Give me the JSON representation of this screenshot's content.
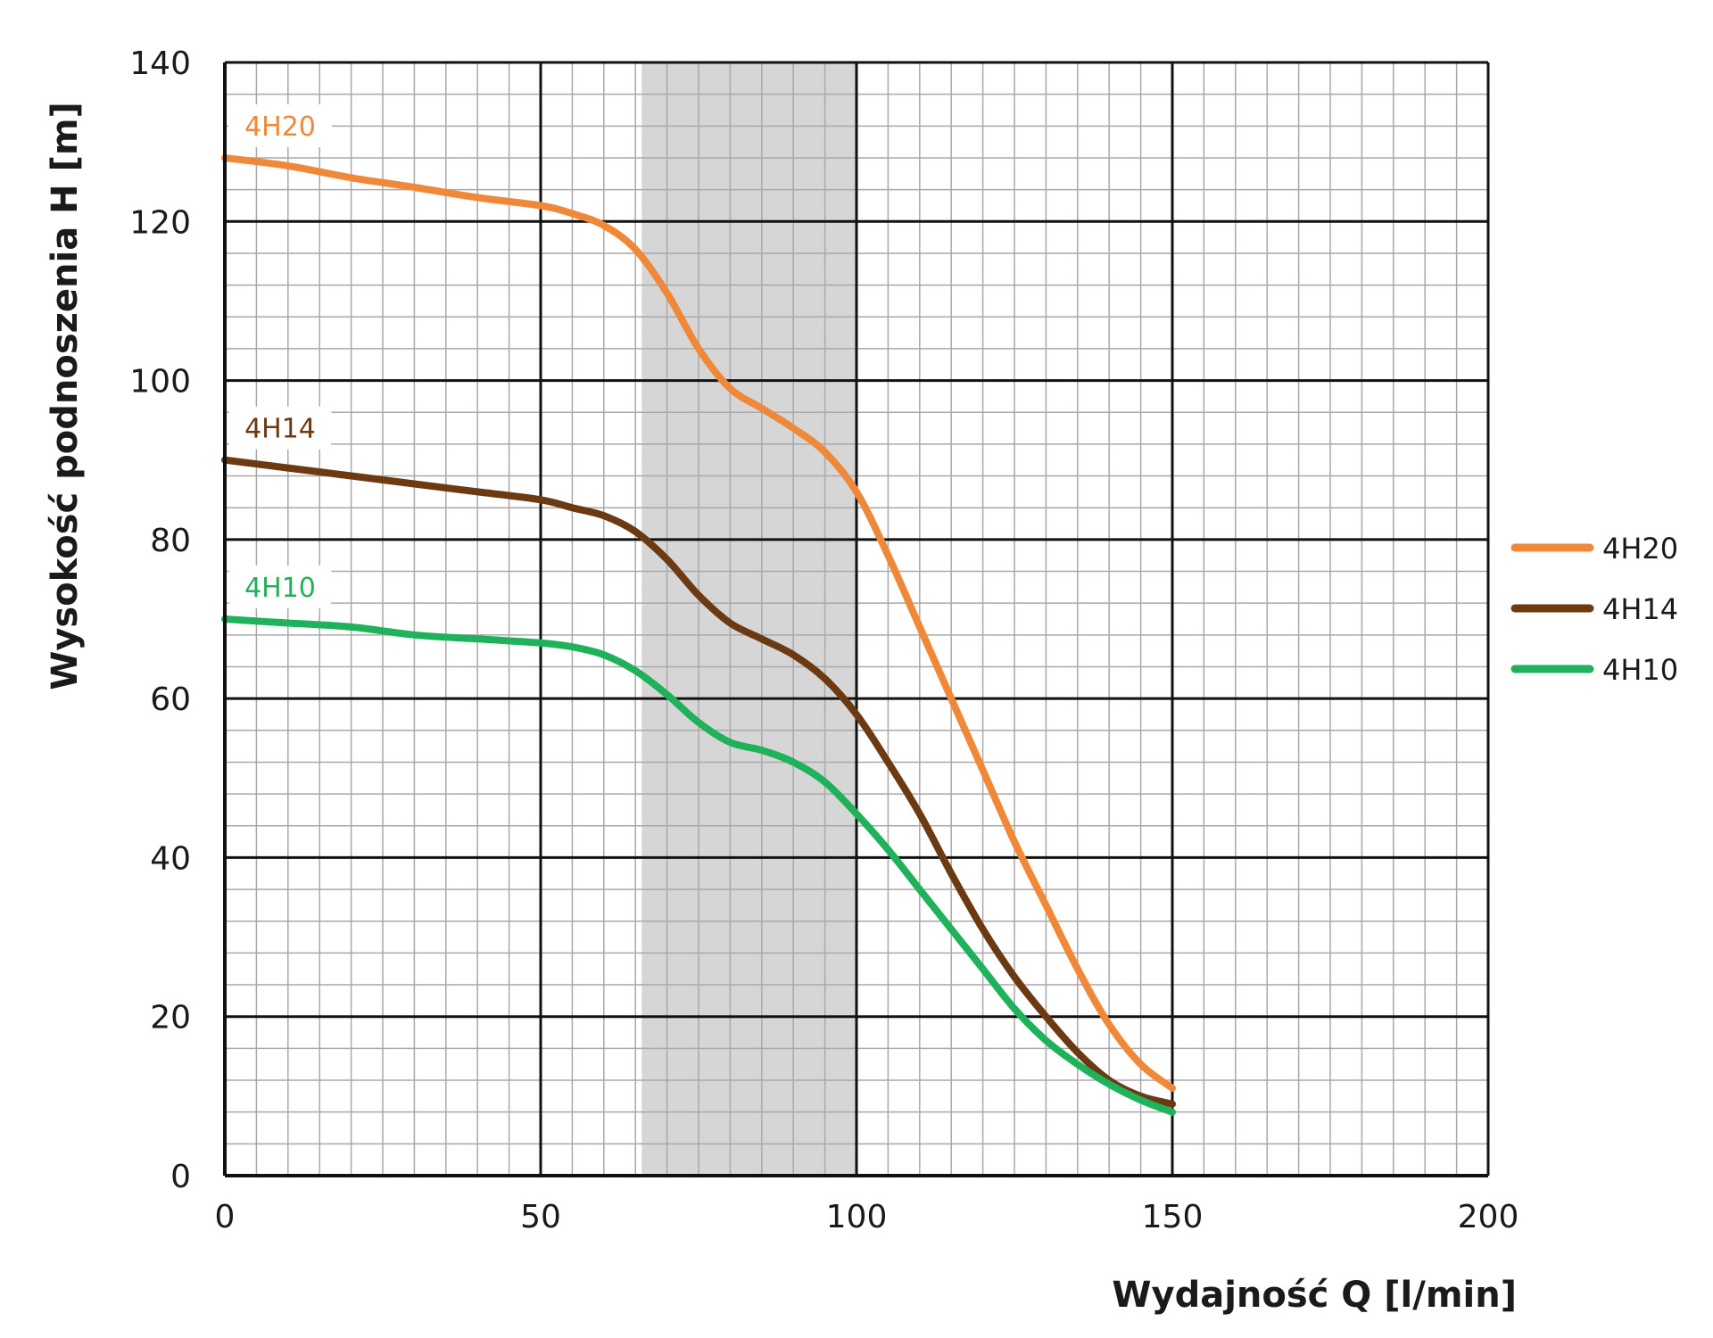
{
  "chart_data": {
    "type": "line",
    "xlabel": "Wydajność Q [l/min]",
    "ylabel": "Wysokość podnoszenia H [m]",
    "xlim": [
      0,
      200
    ],
    "ylim": [
      0,
      140
    ],
    "x_ticks": [
      "0",
      "50",
      "100",
      "150",
      "200"
    ],
    "y_ticks": [
      "0",
      "20",
      "40",
      "60",
      "80",
      "100",
      "120",
      "140"
    ],
    "grid": true,
    "legend_position": "right",
    "highlight_band": {
      "x_from": 66,
      "x_to": 100,
      "color": "#d6d6d6"
    },
    "series": [
      {
        "name": "4H20",
        "color": "#f0883a",
        "points": [
          [
            0,
            128
          ],
          [
            10,
            127
          ],
          [
            20,
            125.5
          ],
          [
            30,
            124.3
          ],
          [
            40,
            123
          ],
          [
            50,
            122
          ],
          [
            55,
            121
          ],
          [
            60,
            119.5
          ],
          [
            65,
            116.5
          ],
          [
            70,
            111
          ],
          [
            75,
            104
          ],
          [
            80,
            99
          ],
          [
            85,
            96.5
          ],
          [
            90,
            94
          ],
          [
            95,
            91
          ],
          [
            100,
            86
          ],
          [
            105,
            78
          ],
          [
            110,
            69
          ],
          [
            115,
            60
          ],
          [
            120,
            51
          ],
          [
            125,
            42
          ],
          [
            130,
            34
          ],
          [
            135,
            26
          ],
          [
            140,
            19
          ],
          [
            145,
            14
          ],
          [
            150,
            11
          ]
        ]
      },
      {
        "name": "4H14",
        "color": "#6b3a12",
        "points": [
          [
            0,
            90
          ],
          [
            10,
            89
          ],
          [
            20,
            88
          ],
          [
            30,
            87
          ],
          [
            40,
            86
          ],
          [
            50,
            85
          ],
          [
            55,
            84
          ],
          [
            60,
            83
          ],
          [
            65,
            81
          ],
          [
            70,
            77.5
          ],
          [
            75,
            73
          ],
          [
            80,
            69.5
          ],
          [
            85,
            67.5
          ],
          [
            90,
            65.5
          ],
          [
            95,
            62.5
          ],
          [
            100,
            58
          ],
          [
            105,
            52
          ],
          [
            110,
            45.5
          ],
          [
            115,
            38
          ],
          [
            120,
            31
          ],
          [
            125,
            25
          ],
          [
            130,
            20
          ],
          [
            135,
            15.5
          ],
          [
            140,
            12
          ],
          [
            145,
            10
          ],
          [
            150,
            9
          ]
        ]
      },
      {
        "name": "4H10",
        "color": "#1fb25a",
        "points": [
          [
            0,
            70
          ],
          [
            10,
            69.5
          ],
          [
            20,
            69
          ],
          [
            30,
            68
          ],
          [
            40,
            67.5
          ],
          [
            50,
            67
          ],
          [
            55,
            66.5
          ],
          [
            60,
            65.5
          ],
          [
            65,
            63.5
          ],
          [
            70,
            60.5
          ],
          [
            75,
            57
          ],
          [
            80,
            54.5
          ],
          [
            85,
            53.5
          ],
          [
            90,
            52
          ],
          [
            95,
            49.5
          ],
          [
            100,
            45.5
          ],
          [
            105,
            41
          ],
          [
            110,
            36
          ],
          [
            115,
            31
          ],
          [
            120,
            26
          ],
          [
            125,
            21
          ],
          [
            130,
            17
          ],
          [
            135,
            14
          ],
          [
            140,
            11.5
          ],
          [
            145,
            9.5
          ],
          [
            150,
            8
          ]
        ]
      }
    ]
  }
}
